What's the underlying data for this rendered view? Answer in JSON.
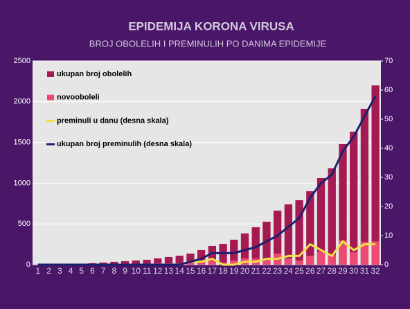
{
  "chart_data": {
    "type": "bar-line",
    "title": "EPIDEMIJA KORONA VIRUSA",
    "subtitle": "BROJ OBOLELIH I PREMINULIH PO DANIMA EPIDEMIJE",
    "categories": [
      "1",
      "2",
      "3",
      "4",
      "5",
      "6",
      "7",
      "8",
      "9",
      "10",
      "11",
      "12",
      "13",
      "14",
      "15",
      "16",
      "17",
      "18",
      "19",
      "20",
      "21",
      "22",
      "23",
      "24",
      "25",
      "26",
      "27",
      "28",
      "29",
      "30",
      "31",
      "32"
    ],
    "series": [
      {
        "name": "ukupan broj obolelih",
        "kind": "bar",
        "color": "#a51a52",
        "values": [
          1,
          1,
          1,
          5,
          12,
          19,
          26,
          35,
          43,
          51,
          60,
          77,
          94,
          110,
          136,
          179,
          230,
          255,
          306,
          383,
          459,
          527,
          663,
          740,
          791,
          901,
          1063,
          1182,
          1480,
          1632,
          1913,
          2200
        ]
      },
      {
        "name": "novooboleli",
        "kind": "bar",
        "color": "#ec4a72",
        "values": [
          1,
          0,
          0,
          4,
          7,
          7,
          7,
          9,
          8,
          8,
          9,
          17,
          17,
          16,
          26,
          43,
          51,
          25,
          51,
          77,
          76,
          68,
          136,
          77,
          51,
          110,
          162,
          119,
          298,
          152,
          281,
          287
        ]
      },
      {
        "name": "preminuli u danu (desna skala)",
        "kind": "line",
        "axis": "y2",
        "color": "#f4e04a",
        "values": [
          0,
          0,
          0,
          0,
          0,
          0,
          0,
          0,
          0,
          0,
          0,
          0,
          0,
          0,
          1,
          1,
          2,
          0,
          0,
          1,
          1,
          2,
          2,
          3,
          3,
          7,
          5,
          3,
          8,
          5,
          7,
          7
        ]
      },
      {
        "name": "ukupan broj preminulih (desna skala)",
        "kind": "line",
        "axis": "y2",
        "color": "#1c1f6e",
        "values": [
          0,
          0,
          0,
          0,
          0,
          0,
          0,
          0,
          0,
          0,
          0,
          0,
          0,
          0,
          1,
          2,
          4,
          4,
          4,
          5,
          6,
          8,
          10,
          13,
          16,
          23,
          28,
          31,
          39,
          44,
          51,
          58
        ]
      }
    ],
    "ylim": [
      0,
      2500
    ],
    "yticks": [
      0,
      500,
      1000,
      1500,
      2000,
      2500
    ],
    "y2lim": [
      0,
      70
    ],
    "y2ticks": [
      0,
      10,
      20,
      30,
      40,
      50,
      60,
      70
    ],
    "grid": true,
    "legend": "top-left"
  }
}
